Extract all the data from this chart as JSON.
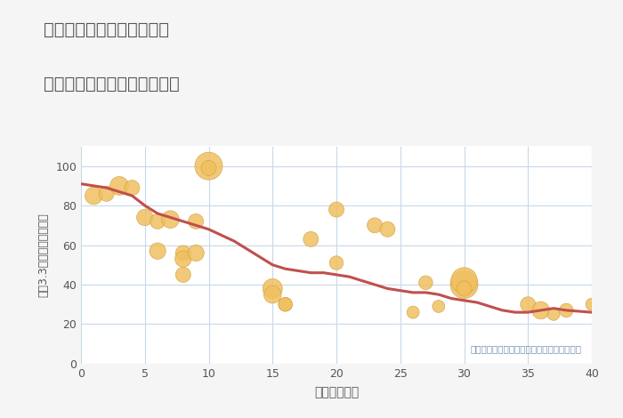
{
  "title_line1": "岐阜県郡上市八幡町河鹿の",
  "title_line2": "築年数別中古マンション価格",
  "xlabel": "築年数（年）",
  "ylabel": "平（3.3㎡）単価（万円）",
  "annotation": "円の大きさは、取引のあった物件面積を示す",
  "background_color": "#f5f5f5",
  "plot_bg_color": "#ffffff",
  "grid_color": "#c8d8e8",
  "title_color": "#555555",
  "line_color": "#c0504d",
  "scatter_color": "#f0c060",
  "scatter_edge_color": "#d4a040",
  "annotation_color": "#7090b0",
  "xlim": [
    0,
    40
  ],
  "ylim": [
    0,
    110
  ],
  "xticks": [
    0,
    5,
    10,
    15,
    20,
    25,
    30,
    35,
    40
  ],
  "yticks": [
    0,
    20,
    40,
    60,
    80,
    100
  ],
  "scatter_x": [
    1,
    2,
    3,
    4,
    5,
    6,
    6,
    7,
    8,
    8,
    8,
    9,
    9,
    10,
    10,
    15,
    15,
    16,
    16,
    18,
    20,
    20,
    23,
    24,
    26,
    27,
    28,
    30,
    30,
    30,
    35,
    36,
    37,
    38,
    40
  ],
  "scatter_y": [
    85,
    86,
    90,
    89,
    74,
    72,
    57,
    73,
    56,
    53,
    45,
    56,
    72,
    100,
    99,
    38,
    35,
    30,
    30,
    63,
    78,
    51,
    70,
    68,
    26,
    41,
    29,
    40,
    42,
    38,
    30,
    27,
    25,
    27,
    30
  ],
  "scatter_size": [
    80,
    60,
    90,
    60,
    70,
    60,
    70,
    80,
    60,
    70,
    60,
    70,
    60,
    200,
    60,
    100,
    80,
    50,
    50,
    60,
    60,
    50,
    60,
    60,
    40,
    50,
    40,
    200,
    180,
    60,
    60,
    80,
    40,
    50,
    40
  ],
  "line_x": [
    0,
    1,
    2,
    3,
    4,
    5,
    6,
    7,
    8,
    9,
    10,
    11,
    12,
    13,
    14,
    15,
    16,
    17,
    18,
    19,
    20,
    21,
    22,
    23,
    24,
    25,
    26,
    27,
    28,
    29,
    30,
    31,
    32,
    33,
    34,
    35,
    36,
    37,
    38,
    39,
    40
  ],
  "line_y": [
    91,
    90,
    89,
    87,
    85,
    80,
    76,
    74,
    72,
    70,
    68,
    65,
    62,
    58,
    54,
    50,
    48,
    47,
    46,
    46,
    45,
    44,
    42,
    40,
    38,
    37,
    36,
    36,
    35,
    33,
    32,
    31,
    29,
    27,
    26,
    26,
    27,
    28,
    27,
    26.5,
    26
  ]
}
